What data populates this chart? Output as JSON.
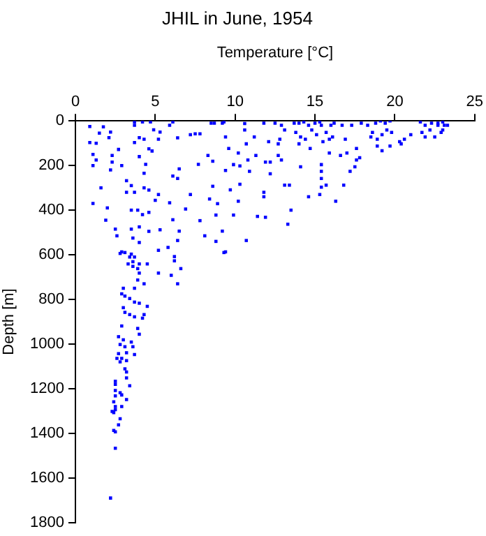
{
  "chart_data": {
    "type": "scatter",
    "title": "JHIL in June, 1954",
    "xlabel": "Temperature [°C]",
    "ylabel": "Depth [m]",
    "color": "#0000ff",
    "marker": "square",
    "xlim": [
      0,
      25
    ],
    "xticks": [
      0,
      5,
      10,
      15,
      20,
      25
    ],
    "ylim": [
      1800,
      0
    ],
    "yticks": [
      0,
      200,
      400,
      600,
      800,
      1000,
      1200,
      1400,
      1600,
      1800
    ],
    "x": [
      0.9,
      1.75,
      1.5,
      0.9,
      1.3,
      1.1,
      1.3,
      1.1,
      2.2,
      2.1,
      2.7,
      2.3,
      2.3,
      2.2,
      2.9,
      1.6,
      1.1,
      2.0,
      1.9,
      2.5,
      2.6,
      3.7,
      3.7,
      4.2,
      4.7,
      4.0,
      3.7,
      4.3,
      4.6,
      4.0,
      4.4,
      4.3,
      3.2,
      3.5,
      3.2,
      3.7,
      4.3,
      4.6,
      3.5,
      3.9,
      4.2,
      4.6,
      3.5,
      4.0,
      4.6,
      3.6,
      4.0,
      2.9,
      3.5,
      4.9,
      5.3,
      5.2,
      4.8,
      5.9,
      6.1,
      6.4,
      6.5,
      6.4,
      6.1,
      5.2,
      5.0,
      5.9,
      6.1,
      5.3,
      6.5,
      6.4,
      5.8,
      6.2,
      7.2,
      7.5,
      7.8,
      7.2,
      6.9,
      7.8,
      8.1,
      7.7,
      8.3,
      8.6,
      8.5,
      8.7,
      8.6,
      8.4,
      8.8,
      8.9,
      9.2,
      8.8,
      9.4,
      9.2,
      9.3,
      9.4,
      9.6,
      9.4,
      9.9,
      9.7,
      9.9,
      10.2,
      10.3,
      10.3,
      10.2,
      10.6,
      10.6,
      10.7,
      10.8,
      10.9,
      10.7,
      11.2,
      11.3,
      11.8,
      11.8,
      11.8,
      11.9,
      11.4,
      11.9,
      12.2,
      12.2,
      12.1,
      12.7,
      12.5,
      12.9,
      12.8,
      12.7,
      12.9,
      13.1,
      13.4,
      13.3,
      13.5,
      13.1,
      13.7,
      14.0,
      14.3,
      14.6,
      15.0,
      15.3,
      13.8,
      14.1,
      14.4,
      14.8,
      15.1,
      15.4,
      14.0,
      14.7,
      15.5,
      15.7,
      16.0,
      15.9,
      16.1,
      16.2,
      16.7,
      16.9,
      17.0,
      16.6,
      15.9,
      15.4,
      15.4,
      15.4,
      15.4,
      15.7,
      15.3,
      14.1,
      14.6,
      16.3,
      16.8,
      17.2,
      17.5,
      17.6,
      17.8,
      17.6,
      17.3,
      17.9,
      18.3,
      18.6,
      18.8,
      19.1,
      19.4,
      19.7,
      19.5,
      19.8,
      19.2,
      18.9,
      18.5,
      18.9,
      19.2,
      19.7,
      20.3,
      20.6,
      21.0,
      20.4,
      21.7,
      21.9,
      22.2,
      22.5,
      21.6,
      21.9,
      22.3,
      22.7,
      23.0,
      23.1,
      23.3,
      22.9,
      23.0,
      22.7,
      2.8,
      3.1,
      3.4,
      3.7,
      3.3,
      3.6,
      4.0,
      3.9,
      3.6,
      4.0,
      4.5,
      5.2,
      5.2,
      6.2,
      6.0,
      6.6,
      6.4,
      9.3,
      3.9,
      4.3,
      3.7,
      3.0,
      2.9,
      3.1,
      3.4,
      3.7,
      4.0,
      4.5,
      3.0,
      3.1,
      3.4,
      3.7,
      4.3,
      4.2,
      2.9,
      3.9,
      4.0,
      2.7,
      3.0,
      2.8,
      3.5,
      3.1,
      3.6,
      3.2,
      2.7,
      2.9,
      2.6,
      3.7,
      3.2,
      2.8,
      3.1,
      3.2,
      3.2,
      2.5,
      2.5,
      3.4,
      2.5,
      2.8,
      2.5,
      2.9,
      3.2,
      2.4,
      2.5,
      2.9,
      2.3,
      2.5,
      2.4,
      2.8,
      2.7,
      2.4,
      2.5,
      2.5,
      2.2
    ],
    "values": [
      25,
      27,
      55,
      97,
      100,
      150,
      175,
      200,
      50,
      75,
      128,
      155,
      185,
      220,
      200,
      300,
      370,
      390,
      445,
      485,
      515,
      5,
      20,
      5,
      5,
      75,
      97,
      82,
      125,
      160,
      195,
      235,
      268,
      290,
      320,
      320,
      300,
      310,
      400,
      400,
      420,
      410,
      485,
      475,
      495,
      525,
      545,
      587,
      597,
      40,
      50,
      82,
      135,
      20,
      5,
      76,
      215,
      258,
      247,
      330,
      356,
      367,
      443,
      488,
      494,
      536,
      567,
      608,
      62,
      58,
      58,
      330,
      395,
      447,
      515,
      195,
      155,
      181,
      10,
      10,
      293,
      350,
      422,
      371,
      494,
      540,
      587,
      10,
      5,
      72,
      124,
      222,
      196,
      309,
      422,
      144,
      202,
      284,
      360,
      12,
      41,
      103,
      175,
      226,
      536,
      72,
      155,
      10,
      320,
      340,
      185,
      428,
      432,
      185,
      237,
      93,
      155,
      10,
      20,
      82,
      103,
      175,
      288,
      288,
      463,
      400,
      41,
      10,
      10,
      5,
      20,
      10,
      5,
      52,
      72,
      82,
      41,
      62,
      20,
      103,
      124,
      93,
      52,
      20,
      82,
      72,
      10,
      20,
      82,
      144,
      155,
      144,
      196,
      226,
      258,
      297,
      288,
      330,
      206,
      340,
      360,
      288,
      226,
      206,
      175,
      165,
      124,
      20,
      10,
      20,
      52,
      10,
      0,
      10,
      0,
      41,
      52,
      62,
      82,
      72,
      113,
      134,
      113,
      93,
      82,
      62,
      103,
      52,
      72,
      41,
      72,
      5,
      20,
      10,
      10,
      5,
      20,
      20,
      52,
      41,
      20,
      594,
      590,
      610,
      610,
      641,
      631,
      641,
      662,
      652,
      682,
      641,
      580,
      682,
      627,
      692,
      662,
      730,
      590,
      713,
      730,
      750,
      750,
      775,
      785,
      796,
      812,
      817,
      831,
      837,
      858,
      868,
      878,
      868,
      884,
      919,
      930,
      956,
      967,
      981,
      1002,
      991,
      1012,
      1012,
      1039,
      1043,
      1064,
      1064,
      1047,
      1074,
      1080,
      1111,
      1125,
      1152,
      1167,
      1181,
      1187,
      1208,
      1218,
      1232,
      1228,
      1249,
      1259,
      1280,
      1280,
      1302,
      1294,
      1307,
      1335,
      1362,
      1387,
      1393,
      1467,
      1690
    ]
  }
}
